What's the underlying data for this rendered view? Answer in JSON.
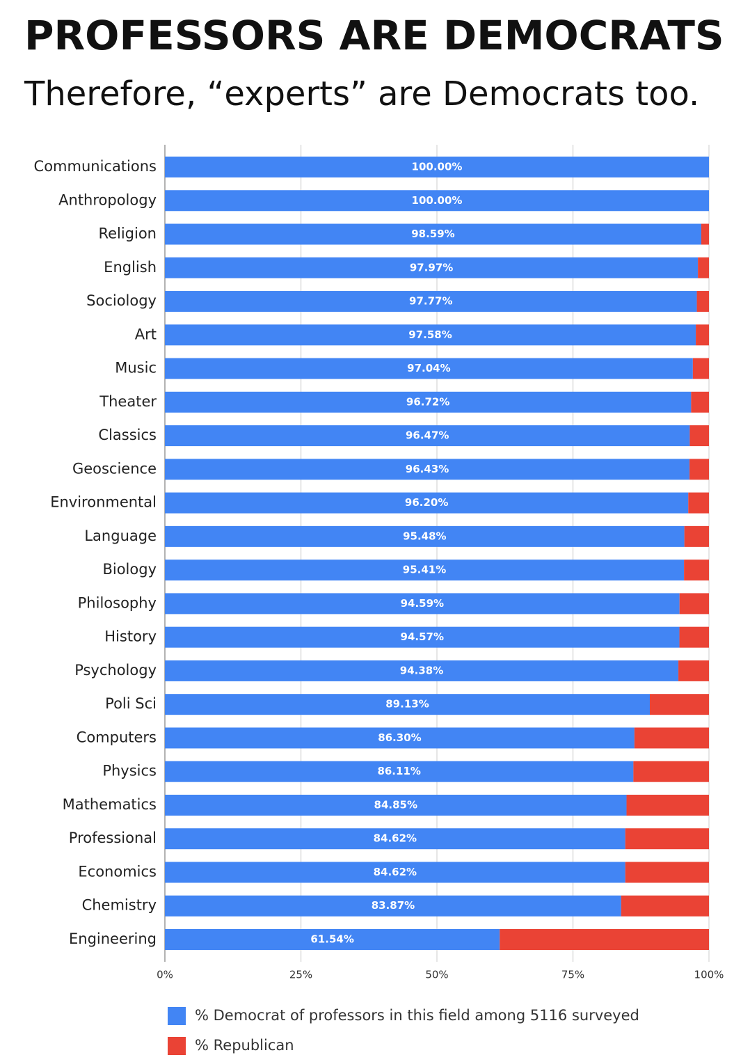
{
  "chart_data": {
    "type": "stacked_barh",
    "title": "PROFESSORS ARE DEMOCRATS",
    "subtitle": "Therefore, “experts” are Democrats too.",
    "categories": [
      "Communications",
      "Anthropology",
      "Religion",
      "English",
      "Sociology",
      "Art",
      "Music",
      "Theater",
      "Classics",
      "Geoscience",
      "Environmental",
      "Language",
      "Biology",
      "Philosophy",
      "History",
      "Psychology",
      "Poli Sci",
      "Computers",
      "Physics",
      "Mathematics",
      "Professional",
      "Economics",
      "Chemistry",
      "Engineering"
    ],
    "series": [
      {
        "name": "% Democrat of professors in this field among 5116 surveyed",
        "color": "#4285f4",
        "values": [
          100,
          100,
          98.59,
          97.97,
          97.77,
          97.58,
          97.04,
          96.72,
          96.47,
          96.43,
          96.2,
          95.48,
          95.41,
          94.59,
          94.57,
          94.38,
          89.13,
          86.3,
          86.11,
          84.85,
          84.62,
          84.62,
          83.87,
          61.54
        ],
        "value_labels": [
          "100.00%",
          "100.00%",
          "98.59%",
          "97.97%",
          "97.77%",
          "97.58%",
          "97.04%",
          "96.72%",
          "96.47%",
          "96.43%",
          "96.20%",
          "95.48%",
          "95.41%",
          "94.59%",
          "94.57%",
          "94.38%",
          "89.13%",
          "86.30%",
          "86.11%",
          "84.85%",
          "84.62%",
          "84.62%",
          "83.87%",
          "61.54%"
        ]
      },
      {
        "name": "% Republican",
        "color": "#ea4335",
        "values": [
          0,
          0,
          1.41,
          2.03,
          2.23,
          2.42,
          2.96,
          3.28,
          3.53,
          3.57,
          3.8,
          4.52,
          4.59,
          5.41,
          5.43,
          5.62,
          10.87,
          13.7,
          13.89,
          15.15,
          15.38,
          15.38,
          16.13,
          38.46
        ]
      }
    ],
    "xlim": [
      0,
      100
    ],
    "xticks": [
      {
        "value": 0,
        "label": "0%"
      },
      {
        "value": 25,
        "label": "25%"
      },
      {
        "value": 50,
        "label": "50%"
      },
      {
        "value": 75,
        "label": "75%"
      },
      {
        "value": 100,
        "label": "100%"
      }
    ],
    "grid": true
  }
}
